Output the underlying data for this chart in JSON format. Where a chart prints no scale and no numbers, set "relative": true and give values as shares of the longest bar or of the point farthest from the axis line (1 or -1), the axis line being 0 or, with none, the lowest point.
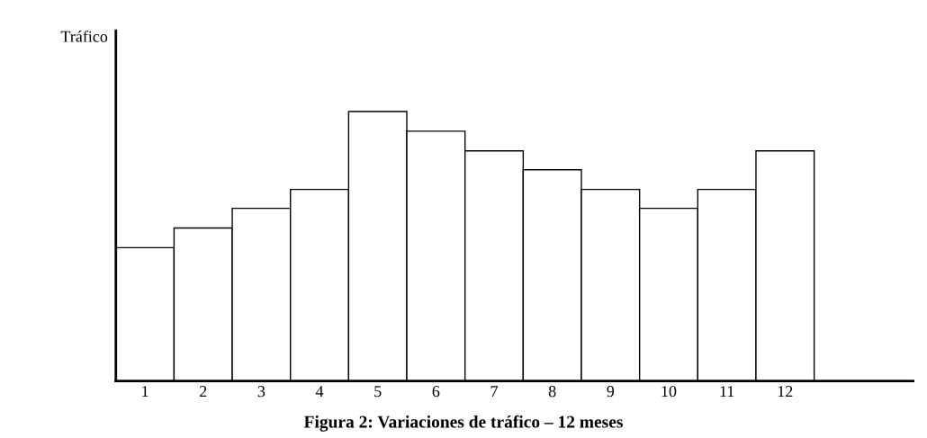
{
  "chart_data": {
    "type": "bar",
    "relative": true,
    "title": "Figura 2: Variaciones de tráfico – 12 meses",
    "ylabel": "Tráfico",
    "categories": [
      "1",
      "2",
      "3",
      "4",
      "5",
      "6",
      "7",
      "8",
      "9",
      "10",
      "11",
      "12"
    ],
    "values": [
      0.495,
      0.568,
      0.641,
      0.711,
      1,
      0.927,
      0.854,
      0.784,
      0.711,
      0.641,
      0.711,
      0.854
    ],
    "color": "#ffffff",
    "grid": false,
    "legend": false
  }
}
